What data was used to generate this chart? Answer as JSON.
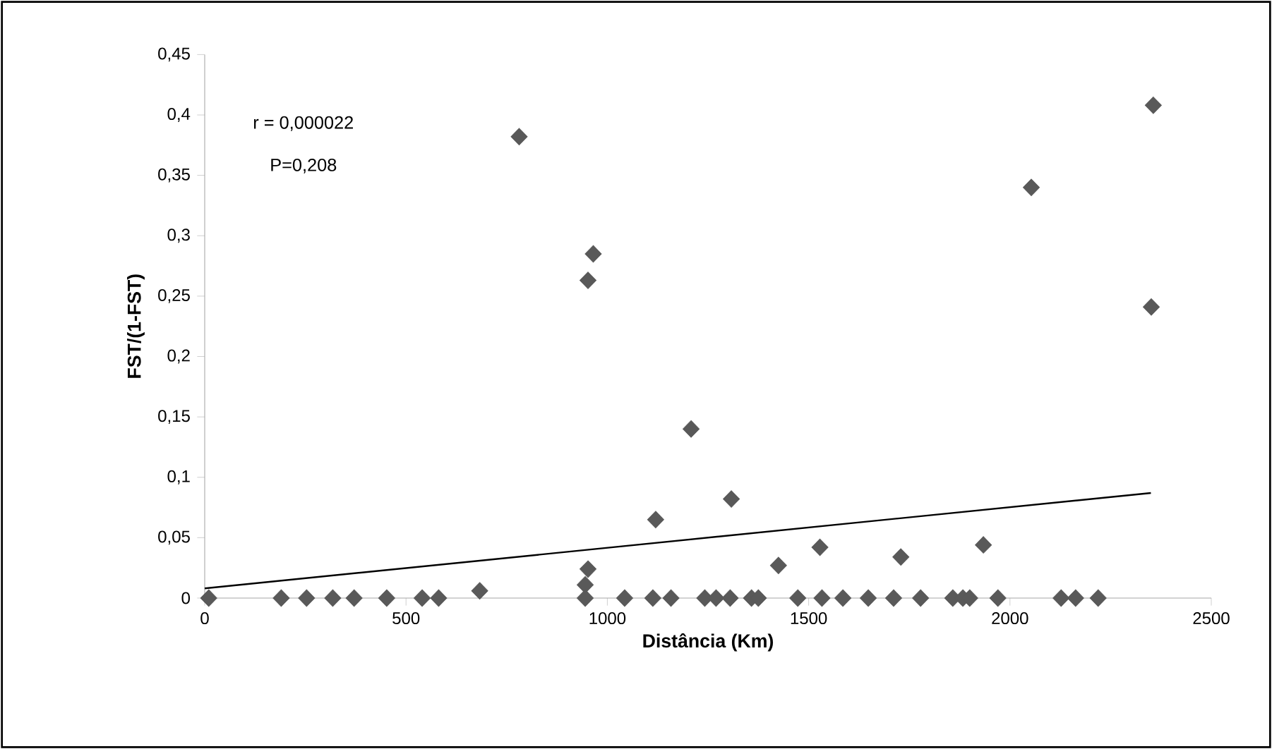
{
  "chart_data": {
    "type": "scatter",
    "xlabel": "Distância (Km)",
    "ylabel": "FST/(1-FST)",
    "annotations": [
      "r = 0,000022",
      "P=0,208"
    ],
    "xlim": [
      0,
      2500
    ],
    "xticks": [
      0,
      500,
      1000,
      1500,
      2000,
      2500
    ],
    "ylim": [
      0,
      0.45
    ],
    "yticks": [
      {
        "value": 0,
        "label": "0"
      },
      {
        "value": 0.05,
        "label": "0,05"
      },
      {
        "value": 0.1,
        "label": "0,1"
      },
      {
        "value": 0.15,
        "label": "0,15"
      },
      {
        "value": 0.2,
        "label": "0,2"
      },
      {
        "value": 0.25,
        "label": "0,25"
      },
      {
        "value": 0.3,
        "label": "0,3"
      },
      {
        "value": 0.35,
        "label": "0,35"
      },
      {
        "value": 0.4,
        "label": "0,4"
      },
      {
        "value": 0.45,
        "label": "0,45"
      }
    ],
    "series": [
      {
        "marker": "diamond",
        "color": "#595959",
        "x": [
          10,
          190,
          253,
          318,
          371,
          452,
          540,
          581,
          683,
          945,
          952,
          945,
          1043,
          1113,
          1158,
          1242,
          1270,
          1305,
          1358,
          1375,
          1473,
          1533,
          1585,
          1648,
          1711,
          1778,
          1858,
          1883,
          1900,
          1970,
          2127,
          2163,
          2219,
          781,
          965,
          952,
          1208,
          1120,
          1308,
          2053,
          2356,
          2351,
          1528,
          1729,
          1934,
          1425
        ],
        "values": [
          0,
          0,
          0,
          0,
          0,
          0,
          0,
          0,
          0.006,
          0.011,
          0.024,
          0,
          0,
          0,
          0,
          0,
          0,
          0,
          0,
          0,
          0,
          0,
          0,
          0,
          0,
          0,
          0,
          0,
          0,
          0,
          0,
          0,
          0,
          0.382,
          0.285,
          0.263,
          0.14,
          0.065,
          0.082,
          0.34,
          0.408,
          0.241,
          0.042,
          0.034,
          0.044,
          0.027
        ]
      },
      {
        "type": "line",
        "marker": "none",
        "color": "#000000",
        "x": [
          0,
          2350
        ],
        "values": [
          0.008,
          0.087
        ]
      }
    ]
  }
}
